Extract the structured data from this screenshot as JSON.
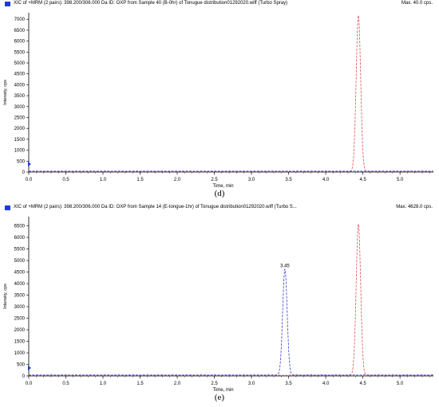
{
  "charts": [
    {
      "header_title": "XIC of +MRM (2 pairs): 398.200/306.000 Da ID: OXP from Sample 40 (B-0hr) of Tonugue distribution01292020.wiff (Turbo Spray)",
      "header_max": "Max. 40.0 cps.",
      "caption": "(d)"
    },
    {
      "header_title": "XIC of +MRM (2 pairs): 398.200/306.000 Da ID: OXP from Sample 14 (E-tongue-1hr) of Tonugue distribution01292020.wiff (Turbo S...",
      "header_max": "Max. 4628.0 cps.",
      "caption": "(e)"
    }
  ],
  "chart_data": [
    {
      "type": "line",
      "xlabel": "Time, min",
      "ylabel": "Intensity, cps",
      "xlim": [
        0,
        5.45
      ],
      "ylim": [
        0,
        7300
      ],
      "xticks": [
        "0.0",
        "0.5",
        "1.0",
        "1.5",
        "2.0",
        "2.5",
        "3.0",
        "3.5",
        "4.0",
        "4.5",
        "5.0"
      ],
      "yticks": [
        "0",
        "500",
        "1000",
        "1500",
        "2000",
        "2500",
        "3000",
        "3500",
        "4000",
        "4500",
        "5000",
        "5500",
        "6000",
        "6500",
        "7000"
      ],
      "grid": false,
      "series": [
        {
          "color": "#e05050",
          "style": "dashed",
          "peaks": [
            {
              "x": 4.44,
              "y": 7150,
              "sigma": 0.03
            }
          ],
          "baseline": 30
        },
        {
          "color": "#3b3bd6",
          "style": "dashed",
          "peaks": [],
          "baseline": 40
        }
      ],
      "annotations": []
    },
    {
      "type": "line",
      "xlabel": "Time, min",
      "ylabel": "Intensity, cps",
      "xlim": [
        0,
        5.45
      ],
      "ylim": [
        0,
        6900
      ],
      "xticks": [
        "0.0",
        "0.5",
        "1.0",
        "1.5",
        "2.0",
        "2.5",
        "3.0",
        "3.5",
        "4.0",
        "4.5",
        "5.0"
      ],
      "yticks": [
        "0",
        "500",
        "1000",
        "1500",
        "2000",
        "2500",
        "3000",
        "3500",
        "4000",
        "4500",
        "5000",
        "5500",
        "6000",
        "6500"
      ],
      "grid": false,
      "series": [
        {
          "color": "#e05050",
          "style": "dashed",
          "peaks": [
            {
              "x": 4.44,
              "y": 6550,
              "sigma": 0.03
            }
          ],
          "baseline": 30
        },
        {
          "color": "#3b3bd6",
          "style": "dashed",
          "peaks": [
            {
              "x": 3.45,
              "y": 4600,
              "sigma": 0.03
            }
          ],
          "baseline": 40
        }
      ],
      "annotations": [
        {
          "text": "3.45",
          "x": 3.45,
          "y": 4600
        }
      ]
    }
  ]
}
